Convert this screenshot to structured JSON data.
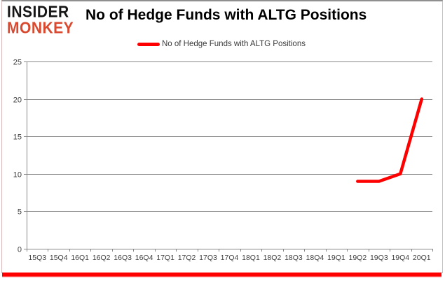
{
  "logo": {
    "line1": "INSIDER",
    "line2": "MONKEY",
    "color": "#d9492f"
  },
  "header": {
    "title": "No of Hedge Funds with ALTG Positions"
  },
  "legend": {
    "label": "No of Hedge Funds with ALTG Positions",
    "line_color": "#ff0000"
  },
  "accent": {
    "bottom_bar_color": "#ff0000",
    "axis_color": "#878787",
    "tick_label_color": "#404040"
  },
  "chart_data": {
    "type": "line",
    "title": "No of Hedge Funds with ALTG Positions",
    "categories": [
      "15Q3",
      "15Q4",
      "16Q1",
      "16Q2",
      "16Q3",
      "16Q4",
      "17Q1",
      "17Q2",
      "17Q3",
      "17Q4",
      "18Q1",
      "18Q2",
      "18Q3",
      "18Q4",
      "19Q1",
      "19Q2",
      "19Q3",
      "19Q4",
      "20Q1"
    ],
    "series": [
      {
        "name": "No of Hedge Funds with ALTG Positions",
        "color": "#ff0000",
        "values": [
          null,
          null,
          null,
          null,
          null,
          null,
          null,
          null,
          null,
          null,
          null,
          null,
          null,
          null,
          null,
          9,
          9,
          10,
          20
        ]
      }
    ],
    "xlabel": "",
    "ylabel": "",
    "ylim": [
      0,
      25
    ],
    "yticks": [
      0,
      5,
      10,
      15,
      20,
      25
    ],
    "grid": true,
    "legend_position": "top"
  }
}
